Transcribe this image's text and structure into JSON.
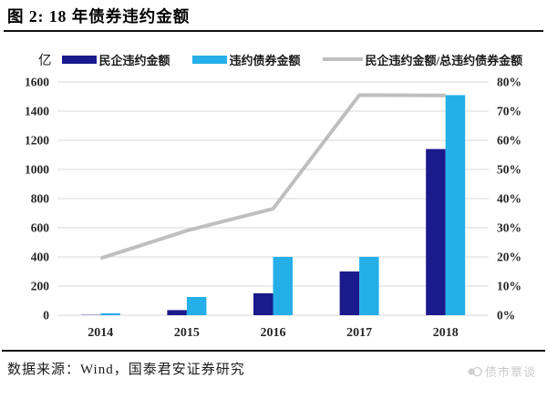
{
  "header": {
    "title": "图 2: 18 年债券违约金额"
  },
  "chart_data": {
    "type": "bar",
    "subtype": "grouped-bars-with-line-dual-axis",
    "title": "图 2: 18 年债券违约金额",
    "categories": [
      "2014",
      "2015",
      "2016",
      "2017",
      "2018"
    ],
    "series": [
      {
        "name": "民企违约金额",
        "type": "bar",
        "axis": "left",
        "color": "#1A1A8C",
        "values": [
          2,
          35,
          150,
          300,
          1140
        ]
      },
      {
        "name": "违约债券金额",
        "type": "bar",
        "axis": "left",
        "color": "#25AFE8",
        "values": [
          13,
          125,
          400,
          400,
          1510
        ]
      },
      {
        "name": "民企违约金额/总违约债券金额",
        "type": "line",
        "axis": "right",
        "color": "#BFBFBF",
        "values": [
          19.5,
          29,
          36.5,
          75.5,
          75.4
        ]
      }
    ],
    "left_axis": {
      "unit": "亿",
      "min": 0,
      "max": 1600,
      "step": 200,
      "ticks": [
        "0",
        "200",
        "400",
        "600",
        "800",
        "1000",
        "1200",
        "1400",
        "1600"
      ]
    },
    "right_axis": {
      "min": 0,
      "max": 80,
      "step": 10,
      "ticks": [
        "0%",
        "10%",
        "20%",
        "30%",
        "40%",
        "50%",
        "60%",
        "70%",
        "80%"
      ]
    },
    "grid": true,
    "gridline_color": "#D9D9D9",
    "legend_position": "top"
  },
  "footer": {
    "source": "数据来源：Wind，国泰君安证券研究",
    "watermark": "债市覃谈"
  }
}
